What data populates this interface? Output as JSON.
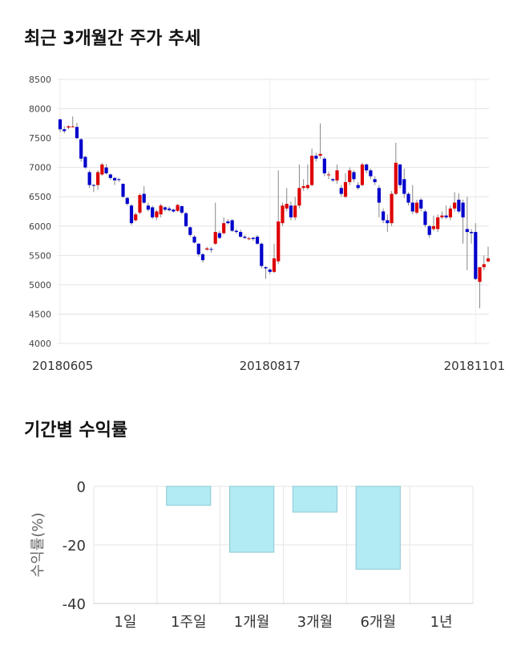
{
  "sections": {
    "price_title": "최근 3개월간 주가 추세",
    "return_title": "기간별 수익률"
  },
  "chart_data": [
    {
      "type": "candlestick",
      "ylim": [
        4000,
        8500
      ],
      "yticks": [
        4000,
        4500,
        5000,
        5500,
        6000,
        6500,
        7000,
        7500,
        8000,
        8500
      ],
      "xtick_labels": [
        {
          "label": "20180605",
          "index": 0
        },
        {
          "label": "20180817",
          "index": 50
        },
        {
          "label": "20181101",
          "index": 99
        }
      ],
      "grid": true,
      "colors": {
        "up": "#dd0000",
        "down": "#0000cc",
        "wick": "#888888"
      },
      "candles": [
        [
          7820,
          7650,
          7830,
          7600
        ],
        [
          7650,
          7620,
          7700,
          7580
        ],
        [
          7680,
          7700,
          7720,
          7650
        ],
        [
          7690,
          7700,
          7870,
          7680
        ],
        [
          7690,
          7500,
          7760,
          7480
        ],
        [
          7480,
          7150,
          7500,
          7100
        ],
        [
          7180,
          7000,
          7200,
          6980
        ],
        [
          6920,
          6700,
          6950,
          6650
        ],
        [
          6700,
          6690,
          6720,
          6580
        ],
        [
          6700,
          6920,
          6950,
          6620
        ],
        [
          6880,
          7050,
          7080,
          6860
        ],
        [
          7000,
          6900,
          7060,
          6880
        ],
        [
          6880,
          6820,
          6900,
          6790
        ],
        [
          6820,
          6780,
          6840,
          6700
        ],
        [
          6800,
          6790,
          6820,
          6750
        ],
        [
          6720,
          6500,
          6730,
          6480
        ],
        [
          6480,
          6380,
          6500,
          6350
        ],
        [
          6350,
          6050,
          6380,
          6020
        ],
        [
          6100,
          6200,
          6230,
          6080
        ],
        [
          6230,
          6530,
          6560,
          6200
        ],
        [
          6550,
          6400,
          6680,
          6380
        ],
        [
          6350,
          6280,
          6400,
          6250
        ],
        [
          6320,
          6150,
          6350,
          6120
        ],
        [
          6150,
          6250,
          6280,
          6100
        ],
        [
          6200,
          6350,
          6380,
          6150
        ],
        [
          6320,
          6280,
          6340,
          6250
        ],
        [
          6300,
          6270,
          6340,
          6250
        ],
        [
          6280,
          6250,
          6300,
          6230
        ],
        [
          6260,
          6360,
          6380,
          6240
        ],
        [
          6340,
          6230,
          6350,
          6200
        ],
        [
          6220,
          6000,
          6240,
          5980
        ],
        [
          5980,
          5850,
          6000,
          5820
        ],
        [
          5820,
          5720,
          5850,
          5700
        ],
        [
          5700,
          5520,
          5710,
          5480
        ],
        [
          5520,
          5420,
          5540,
          5380
        ],
        [
          5600,
          5620,
          5650,
          5580
        ],
        [
          5610,
          5600,
          5640,
          5550
        ],
        [
          5700,
          5900,
          6400,
          5680
        ],
        [
          5880,
          5800,
          5920,
          5780
        ],
        [
          5880,
          6050,
          6150,
          5860
        ],
        [
          6080,
          6050,
          6120,
          6030
        ],
        [
          6100,
          5920,
          6120,
          5900
        ],
        [
          5920,
          5900,
          5950,
          5870
        ],
        [
          5900,
          5820,
          5940,
          5800
        ],
        [
          5820,
          5800,
          5850,
          5780
        ],
        [
          5780,
          5790,
          5820,
          5760
        ],
        [
          5800,
          5780,
          5820,
          5750
        ],
        [
          5820,
          5700,
          5850,
          5680
        ],
        [
          5700,
          5320,
          5720,
          5280
        ],
        [
          5300,
          5280,
          5320,
          5100
        ],
        [
          5260,
          5220,
          5280,
          5180
        ],
        [
          5220,
          5450,
          5700,
          5200
        ],
        [
          5400,
          6080,
          6950,
          5350
        ],
        [
          6050,
          6350,
          6400,
          6000
        ],
        [
          6300,
          6380,
          6650,
          6250
        ],
        [
          6350,
          6150,
          6420,
          6100
        ],
        [
          6150,
          6350,
          6500,
          6100
        ],
        [
          6350,
          6650,
          7050,
          6300
        ],
        [
          6650,
          6680,
          6800,
          6600
        ],
        [
          6650,
          6700,
          7050,
          6620
        ],
        [
          6700,
          7200,
          7320,
          6680
        ],
        [
          7200,
          7150,
          7250,
          7100
        ],
        [
          7200,
          7230,
          7750,
          7150
        ],
        [
          7150,
          6900,
          7180,
          6850
        ],
        [
          6870,
          6880,
          6930,
          6800
        ],
        [
          6800,
          6780,
          6820,
          6750
        ],
        [
          6780,
          6950,
          7050,
          6720
        ],
        [
          6650,
          6550,
          6700,
          6500
        ],
        [
          6500,
          6750,
          6900,
          6480
        ],
        [
          6750,
          6950,
          7000,
          6700
        ],
        [
          6920,
          6800,
          6950,
          6750
        ],
        [
          6700,
          6650,
          6750,
          6620
        ],
        [
          6700,
          7050,
          7080,
          6680
        ],
        [
          7050,
          6950,
          7070,
          6900
        ],
        [
          6950,
          6850,
          6980,
          6800
        ],
        [
          6800,
          6750,
          6850,
          6700
        ],
        [
          6650,
          6400,
          6700,
          6150
        ],
        [
          6250,
          6100,
          6300,
          6050
        ],
        [
          6100,
          6050,
          6200,
          5900
        ],
        [
          6050,
          6550,
          6600,
          6000
        ],
        [
          6550,
          7080,
          7420,
          6530
        ],
        [
          7050,
          6700,
          7060,
          6650
        ],
        [
          6800,
          6550,
          6980,
          6480
        ],
        [
          6550,
          6400,
          6580,
          6350
        ],
        [
          6400,
          6250,
          6700,
          6200
        ],
        [
          6230,
          6400,
          6450,
          6200
        ],
        [
          6450,
          6300,
          6480,
          6250
        ],
        [
          6250,
          6020,
          6280,
          5980
        ],
        [
          6000,
          5850,
          6020,
          5800
        ],
        [
          5950,
          6000,
          6180,
          5920
        ],
        [
          5950,
          6150,
          6200,
          5900
        ],
        [
          6150,
          6180,
          6250,
          6120
        ],
        [
          6180,
          6150,
          6350,
          6120
        ],
        [
          6150,
          6300,
          6350,
          6100
        ],
        [
          6300,
          6400,
          6580,
          6250
        ],
        [
          6450,
          6250,
          6560,
          6220
        ],
        [
          6400,
          6150,
          6450,
          5700
        ],
        [
          5950,
          5900,
          6500,
          5250
        ],
        [
          5900,
          5880,
          5950,
          5700
        ],
        [
          5900,
          5100,
          6050,
          5080
        ],
        [
          5050,
          5300,
          5300,
          4600
        ],
        [
          5300,
          5350,
          5500,
          5250
        ],
        [
          5400,
          5450,
          5650,
          5380
        ]
      ]
    },
    {
      "type": "bar",
      "categories": [
        "1일",
        "1주일",
        "1개월",
        "3개월",
        "6개월",
        "1년"
      ],
      "values": [
        0,
        -6.5,
        -22.5,
        -8.8,
        -28.3,
        0
      ],
      "ylabel": "수익률(%)",
      "ylim": [
        -40,
        0
      ],
      "yticks": [
        0,
        -20,
        -40
      ],
      "colors": {
        "fill": "#b2ebf2",
        "stroke": "#8ac8d4"
      }
    }
  ]
}
